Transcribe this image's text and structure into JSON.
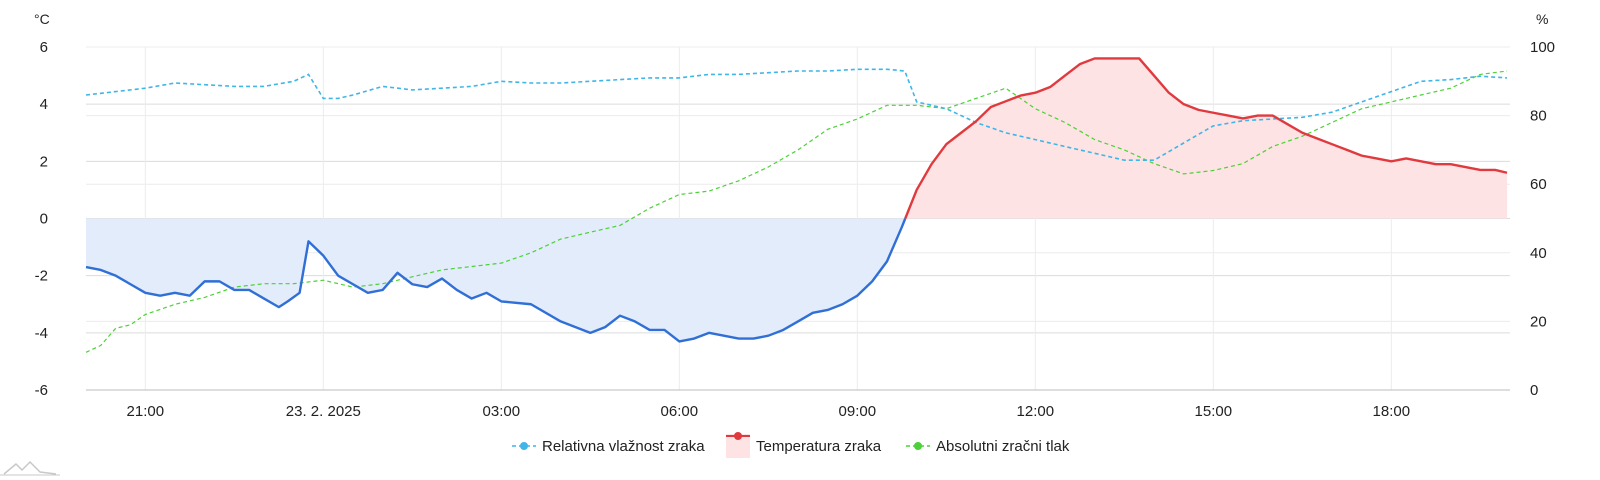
{
  "chart_data": {
    "type": "line",
    "left_axis": {
      "unit": "°C",
      "min": -6,
      "max": 6,
      "ticks": [
        "6",
        "4",
        "2",
        "0",
        "-2",
        "-4",
        "-6"
      ]
    },
    "right_axis": {
      "unit": "%",
      "min": 0,
      "max": 100,
      "ticks": [
        "100",
        "80",
        "60",
        "40",
        "20",
        "0"
      ]
    },
    "x_axis": {
      "start_hour": 20.0,
      "end_hour": 44.0,
      "ticks": [
        {
          "hour": 21,
          "label": "21:00"
        },
        {
          "hour": 24,
          "label": "23. 2. 2025"
        },
        {
          "hour": 27,
          "label": "03:00"
        },
        {
          "hour": 30,
          "label": "06:00"
        },
        {
          "hour": 33,
          "label": "09:00"
        },
        {
          "hour": 36,
          "label": "12:00"
        },
        {
          "hour": 39,
          "label": "15:00"
        },
        {
          "hour": 42,
          "label": "18:00"
        }
      ]
    },
    "grid": true,
    "legend_position": "bottom",
    "series": [
      {
        "name": "Relativna vlažnost zraka",
        "axis": "right",
        "color": "#3fb6e8",
        "style": "dashed",
        "x": [
          20.0,
          20.5,
          21.0,
          21.5,
          22.0,
          22.5,
          23.0,
          23.5,
          23.75,
          24.0,
          24.25,
          24.5,
          25.0,
          25.5,
          26.0,
          26.5,
          27.0,
          27.5,
          28.0,
          28.5,
          29.0,
          29.5,
          30.0,
          30.5,
          31.0,
          31.5,
          32.0,
          32.5,
          33.0,
          33.5,
          33.8,
          34.0,
          34.5,
          35.0,
          35.5,
          36.0,
          36.5,
          37.0,
          37.5,
          38.0,
          38.5,
          39.0,
          39.5,
          40.0,
          40.5,
          41.0,
          41.5,
          42.0,
          42.5,
          43.0,
          43.5,
          43.95
        ],
        "values": [
          86,
          87,
          88,
          89.5,
          89,
          88.5,
          88.5,
          90,
          92,
          85,
          85,
          86,
          88.5,
          87.5,
          88,
          88.5,
          90,
          89.5,
          89.5,
          90,
          90.5,
          91,
          91,
          92,
          92,
          92.5,
          93,
          93,
          93.5,
          93.5,
          93,
          84,
          82,
          78,
          75,
          73,
          71,
          69,
          67,
          67,
          72,
          77,
          78.5,
          79,
          79.5,
          81,
          84,
          87,
          90,
          90.5,
          91.5,
          91
        ]
      },
      {
        "name": "Temperatura zraka",
        "axis": "left",
        "color_positive": "#e03a3e",
        "color_negative": "#2f6fd6",
        "fill_positive": "#fde3e4",
        "fill_negative": "#e3ecfa",
        "style": "solid",
        "x": [
          20.0,
          20.25,
          20.5,
          20.75,
          21.0,
          21.25,
          21.5,
          21.75,
          22.0,
          22.25,
          22.5,
          22.75,
          23.0,
          23.25,
          23.4,
          23.6,
          23.75,
          24.0,
          24.25,
          24.5,
          24.75,
          25.0,
          25.25,
          25.5,
          25.75,
          26.0,
          26.25,
          26.5,
          26.75,
          27.0,
          27.5,
          28.0,
          28.25,
          28.5,
          28.75,
          29.0,
          29.25,
          29.5,
          29.75,
          30.0,
          30.25,
          30.5,
          30.75,
          31.0,
          31.25,
          31.5,
          31.75,
          32.0,
          32.25,
          32.5,
          32.75,
          33.0,
          33.25,
          33.5,
          33.75,
          34.0,
          34.25,
          34.5,
          34.75,
          35.0,
          35.25,
          35.5,
          35.75,
          36.0,
          36.25,
          36.5,
          36.75,
          37.0,
          37.25,
          37.5,
          37.75,
          38.0,
          38.25,
          38.5,
          38.75,
          39.0,
          39.25,
          39.5,
          39.75,
          40.0,
          40.25,
          40.5,
          40.75,
          41.0,
          41.25,
          41.5,
          41.75,
          42.0,
          42.25,
          42.5,
          42.75,
          43.0,
          43.25,
          43.5,
          43.75,
          43.95
        ],
        "values": [
          -1.7,
          -1.8,
          -2.0,
          -2.3,
          -2.6,
          -2.7,
          -2.6,
          -2.7,
          -2.2,
          -2.2,
          -2.5,
          -2.5,
          -2.8,
          -3.1,
          -2.9,
          -2.6,
          -0.8,
          -1.3,
          -2.0,
          -2.3,
          -2.6,
          -2.5,
          -1.9,
          -2.3,
          -2.4,
          -2.1,
          -2.5,
          -2.8,
          -2.6,
          -2.9,
          -3.0,
          -3.6,
          -3.8,
          -4.0,
          -3.8,
          -3.4,
          -3.6,
          -3.9,
          -3.9,
          -4.3,
          -4.2,
          -4.0,
          -4.1,
          -4.2,
          -4.2,
          -4.1,
          -3.9,
          -3.6,
          -3.3,
          -3.2,
          -3.0,
          -2.7,
          -2.2,
          -1.5,
          -0.3,
          1.0,
          1.9,
          2.6,
          3.0,
          3.4,
          3.9,
          4.1,
          4.3,
          4.4,
          4.6,
          5.0,
          5.4,
          5.6,
          5.6,
          5.6,
          5.6,
          5.0,
          4.4,
          4.0,
          3.8,
          3.7,
          3.6,
          3.5,
          3.6,
          3.6,
          3.3,
          3.0,
          2.8,
          2.6,
          2.4,
          2.2,
          2.1,
          2.0,
          2.1,
          2.0,
          1.9,
          1.9,
          1.8,
          1.7,
          1.7,
          1.6
        ]
      },
      {
        "name": "Absolutni zračni tlak",
        "axis": "right",
        "color": "#4cd137",
        "style": "dashed",
        "x": [
          20.0,
          20.25,
          20.5,
          20.75,
          21.0,
          21.5,
          22.0,
          22.5,
          23.0,
          23.5,
          24.0,
          24.5,
          25.0,
          25.5,
          26.0,
          26.5,
          27.0,
          27.5,
          28.0,
          28.5,
          29.0,
          29.5,
          30.0,
          30.5,
          31.0,
          31.5,
          32.0,
          32.5,
          33.0,
          33.5,
          34.0,
          34.5,
          35.0,
          35.5,
          36.0,
          36.5,
          37.0,
          37.5,
          38.0,
          38.5,
          39.0,
          39.5,
          40.0,
          40.5,
          41.0,
          41.5,
          42.0,
          42.5,
          43.0,
          43.5,
          43.95
        ],
        "values": [
          11,
          13,
          18,
          19,
          22,
          25,
          27,
          30,
          31,
          31,
          32,
          30,
          31,
          33,
          35,
          36,
          37,
          40,
          44,
          46,
          48,
          53,
          57,
          58,
          61,
          65,
          70,
          76,
          79,
          83,
          83,
          82,
          85,
          88,
          82,
          78,
          73,
          70,
          66,
          63,
          64,
          66,
          71,
          74,
          78,
          82,
          84,
          86,
          88,
          92,
          93
        ]
      }
    ]
  }
}
